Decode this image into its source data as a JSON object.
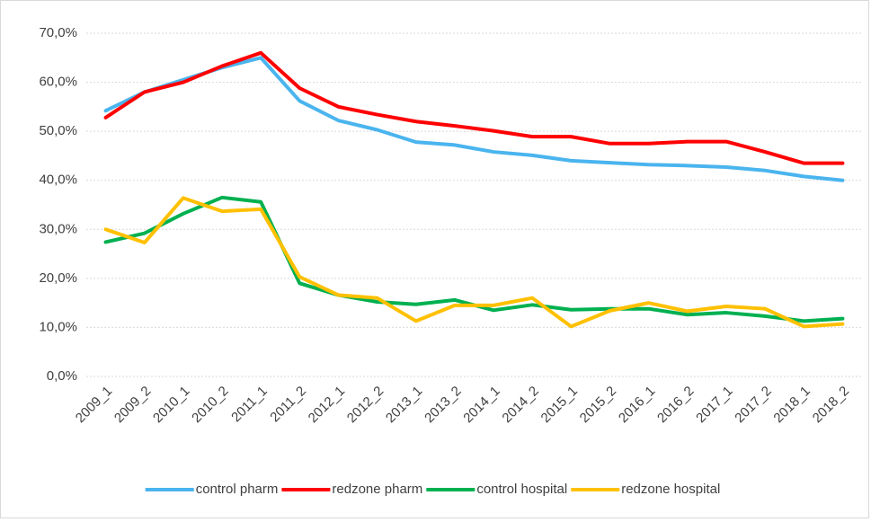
{
  "chart_data": {
    "type": "line",
    "categories": [
      "2009_1",
      "2009_2",
      "2010_1",
      "2010_2",
      "2011_1",
      "2011_2",
      "2012_1",
      "2012_2",
      "2013_1",
      "2013_2",
      "2014_1",
      "2014_2",
      "2015_1",
      "2015_2",
      "2016_1",
      "2016_2",
      "2017_1",
      "2017_2",
      "2018_1",
      "2018_2"
    ],
    "series": [
      {
        "name": "control pharm",
        "color": "#4ab4ee",
        "values": [
          54.2,
          58,
          60.5,
          63,
          65,
          56.2,
          52.2,
          50.3,
          47.8,
          47.2,
          45.8,
          45.1,
          44,
          43.6,
          43.2,
          43,
          42.7,
          42,
          40.8,
          40
        ]
      },
      {
        "name": "redzone pharm",
        "color": "#ff0000",
        "values": [
          52.8,
          58,
          60,
          63.3,
          66,
          58.8,
          55,
          53.4,
          52,
          51.1,
          50.1,
          48.9,
          48.9,
          47.5,
          47.5,
          47.9,
          47.9,
          45.8,
          43.5,
          43.5
        ]
      },
      {
        "name": "control hospital",
        "color": "#00b050",
        "values": [
          27.4,
          29.2,
          33.2,
          36.5,
          35.6,
          19,
          16.6,
          15.2,
          14.7,
          15.6,
          13.5,
          14.6,
          13.6,
          13.8,
          13.8,
          12.6,
          13,
          12.3,
          11.3,
          11.8
        ]
      },
      {
        "name": "redzone hospital",
        "color": "#ffc000",
        "values": [
          30,
          27.3,
          36.4,
          33.7,
          34.1,
          20.3,
          16.6,
          16,
          11.3,
          14.5,
          14.5,
          16,
          10.2,
          13.4,
          15,
          13.3,
          14.3,
          13.8,
          10.2,
          10.7
        ]
      }
    ],
    "ylim": [
      0,
      70
    ],
    "yticks": [
      {
        "value": 0,
        "label": "0,0%"
      },
      {
        "value": 10,
        "label": "10,0%"
      },
      {
        "value": 20,
        "label": "20,0%"
      },
      {
        "value": 30,
        "label": "30,0%"
      },
      {
        "value": 40,
        "label": "40,0%"
      },
      {
        "value": 50,
        "label": "50,0%"
      },
      {
        "value": 60,
        "label": "60,0%"
      },
      {
        "value": 70,
        "label": "70,0%"
      }
    ],
    "grid": true,
    "legend": "bottom"
  }
}
